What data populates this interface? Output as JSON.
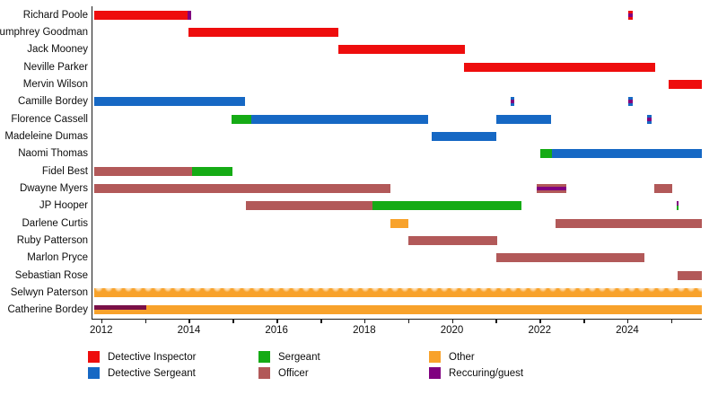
{
  "chart_data": {
    "type": "gantt-timeline",
    "description": "Character tenure timeline with roles shown as colored bars",
    "x_axis": {
      "min": 2011.8,
      "max": 2025.7,
      "tick_years": [
        2012,
        2013,
        2014,
        2015,
        2016,
        2017,
        2018,
        2019,
        2020,
        2021,
        2022,
        2023,
        2024,
        2025
      ],
      "label_years": [
        2012,
        2014,
        2016,
        2018,
        2020,
        2022,
        2024
      ],
      "grid": false
    },
    "roles": {
      "di": "#ee0d0d",
      "ds": "#1668c4",
      "sgt": "#15ab15",
      "off": "#b25959",
      "other": "#f8a22b",
      "guest": "#800080",
      "claret": "#7a1048"
    },
    "legend": {
      "position": "bottom",
      "columns": [
        [
          {
            "label": "Detective Inspector",
            "role": "di"
          },
          {
            "label": "Detective Sergeant",
            "role": "ds"
          }
        ],
        [
          {
            "label": "Sergeant",
            "role": "sgt"
          },
          {
            "label": "Officer",
            "role": "off"
          }
        ],
        [
          {
            "label": "Other",
            "role": "other"
          },
          {
            "label": "Reccuring/guest",
            "role": "guest"
          }
        ]
      ]
    },
    "rows": [
      {
        "name": "Richard Poole",
        "segments": [
          {
            "start": 2011.84,
            "end": 2013.98,
            "role": "di"
          },
          {
            "start": 2013.98,
            "end": 2014.06,
            "role": "guest"
          },
          {
            "start": 2024.02,
            "end": 2024.12,
            "role": "di",
            "overlay": {
              "role": "guest",
              "area": "middle"
            }
          }
        ]
      },
      {
        "name": "Humphrey Goodman",
        "segments": [
          {
            "start": 2014.0,
            "end": 2017.41,
            "role": "di"
          }
        ]
      },
      {
        "name": "Jack Mooney",
        "segments": [
          {
            "start": 2017.41,
            "end": 2020.29,
            "role": "di"
          }
        ]
      },
      {
        "name": "Neville Parker",
        "segments": [
          {
            "start": 2020.27,
            "end": 2024.63,
            "role": "di"
          }
        ]
      },
      {
        "name": "Mervin Wilson",
        "segments": [
          {
            "start": 2024.94,
            "end": 2025.7,
            "role": "di"
          }
        ]
      },
      {
        "name": "Camille Bordey",
        "segments": [
          {
            "start": 2011.84,
            "end": 2015.27,
            "role": "ds"
          },
          {
            "start": 2021.33,
            "end": 2021.43,
            "role": "ds",
            "overlay": {
              "role": "guest",
              "area": "middle"
            }
          },
          {
            "start": 2024.02,
            "end": 2024.12,
            "role": "ds",
            "overlay": {
              "role": "guest",
              "area": "middle"
            }
          }
        ]
      },
      {
        "name": "Florence Cassell",
        "segments": [
          {
            "start": 2014.98,
            "end": 2015.43,
            "role": "sgt"
          },
          {
            "start": 2015.43,
            "end": 2019.45,
            "role": "ds"
          },
          {
            "start": 2021.02,
            "end": 2022.27,
            "role": "ds"
          },
          {
            "start": 2024.45,
            "end": 2024.55,
            "role": "ds",
            "overlay": {
              "role": "guest",
              "area": "middle"
            }
          }
        ]
      },
      {
        "name": "Madeleine Dumas",
        "segments": [
          {
            "start": 2019.53,
            "end": 2021.02,
            "role": "ds"
          }
        ]
      },
      {
        "name": "Naomi Thomas",
        "segments": [
          {
            "start": 2022.02,
            "end": 2022.29,
            "role": "sgt"
          },
          {
            "start": 2022.29,
            "end": 2025.7,
            "role": "ds"
          }
        ]
      },
      {
        "name": "Fidel Best",
        "segments": [
          {
            "start": 2011.84,
            "end": 2014.08,
            "role": "off"
          },
          {
            "start": 2014.08,
            "end": 2015.0,
            "role": "sgt"
          }
        ]
      },
      {
        "name": "Dwayne Myers",
        "segments": [
          {
            "start": 2011.84,
            "end": 2018.59,
            "role": "off"
          },
          {
            "start": 2021.94,
            "end": 2022.61,
            "role": "off",
            "overlay": {
              "role": "guest",
              "area": "middle"
            }
          },
          {
            "start": 2024.61,
            "end": 2025.02,
            "role": "off"
          }
        ]
      },
      {
        "name": "JP Hooper",
        "segments": [
          {
            "start": 2015.31,
            "end": 2018.18,
            "role": "off"
          },
          {
            "start": 2018.18,
            "end": 2021.59,
            "role": "sgt"
          },
          {
            "start": 2025.12,
            "end": 2025.17,
            "role": "sgt",
            "overlay": {
              "role": "guest",
              "area": "top"
            }
          }
        ]
      },
      {
        "name": "Darlene Curtis",
        "segments": [
          {
            "start": 2018.59,
            "end": 2019.0,
            "role": "other"
          },
          {
            "start": 2022.37,
            "end": 2025.7,
            "role": "off"
          }
        ]
      },
      {
        "name": "Ruby Patterson",
        "segments": [
          {
            "start": 2019.0,
            "end": 2021.04,
            "role": "off"
          }
        ]
      },
      {
        "name": "Marlon Pryce",
        "segments": [
          {
            "start": 2021.02,
            "end": 2024.39,
            "role": "off"
          }
        ]
      },
      {
        "name": "Sebastian Rose",
        "segments": [
          {
            "start": 2025.14,
            "end": 2025.7,
            "role": "off"
          }
        ]
      },
      {
        "name": "Selwyn Paterson",
        "segments": [
          {
            "start": 2011.84,
            "end": 2025.7,
            "role": "other",
            "pattern": true
          }
        ]
      },
      {
        "name": "Catherine Bordey",
        "segments": [
          {
            "start": 2011.84,
            "end": 2025.7,
            "role": "other"
          },
          {
            "start": 2011.84,
            "end": 2013.02,
            "role": "claret",
            "band": "tophalf"
          }
        ]
      }
    ]
  }
}
